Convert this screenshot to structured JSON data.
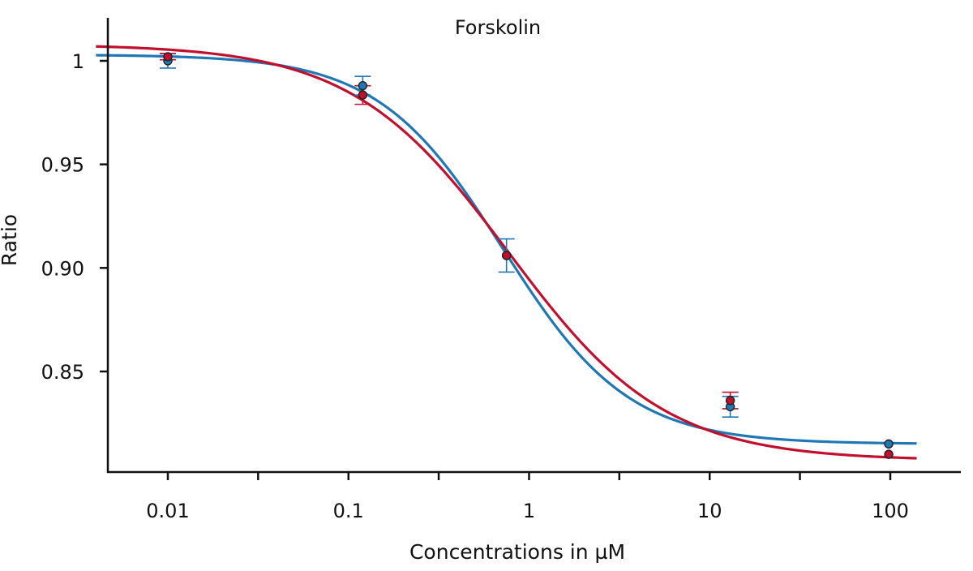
{
  "chart_data": {
    "type": "scatter",
    "title": "Forskolin",
    "xlabel": "Concentrations in µM",
    "ylabel": "Ratio",
    "x_scale": "log",
    "xlim": [
      0.004,
      180
    ],
    "ylim": [
      0.806,
      1.02
    ],
    "x_ticks": [
      0.01,
      0.1,
      1,
      10,
      100
    ],
    "x_tick_labels": [
      "0.01",
      "0.1",
      "1",
      "10",
      "100"
    ],
    "x_minor_ticks": [
      0.0316,
      0.316,
      3.16,
      31.6
    ],
    "y_ticks": [
      0.85,
      0.9,
      0.95,
      1
    ],
    "y_tick_labels": [
      "0.85",
      "0.90",
      "0.95",
      "1"
    ],
    "grid": false,
    "legend": "none",
    "series": [
      {
        "color": "#1f78b4",
        "points": [
          {
            "x": 0.01,
            "y": 1.0,
            "err": 0.0035
          },
          {
            "x": 0.12,
            "y": 0.988,
            "err": 0.0045
          },
          {
            "x": 0.75,
            "y": 0.906,
            "err": 0.008
          },
          {
            "x": 13,
            "y": 0.833,
            "err": 0.005
          },
          {
            "x": 98,
            "y": 0.815,
            "err": 0
          }
        ],
        "curve": {
          "bottom": 0.815,
          "top": 1.003,
          "ec50": 0.72,
          "hill": 1.25,
          "x_range": [
            0.004,
            140
          ]
        }
      },
      {
        "color": "#c0102e",
        "points": [
          {
            "x": 0.01,
            "y": 1.002,
            "err": 0.0015
          },
          {
            "x": 0.12,
            "y": 0.9835,
            "err": 0.0045
          },
          {
            "x": 0.75,
            "y": 0.906,
            "err": 0
          },
          {
            "x": 13,
            "y": 0.836,
            "err": 0.004
          },
          {
            "x": 98,
            "y": 0.81,
            "err": 0
          }
        ],
        "curve": {
          "bottom": 0.807,
          "top": 1.008,
          "ec50": 0.77,
          "hill": 1.0,
          "x_range": [
            0.004,
            140
          ]
        }
      }
    ]
  }
}
